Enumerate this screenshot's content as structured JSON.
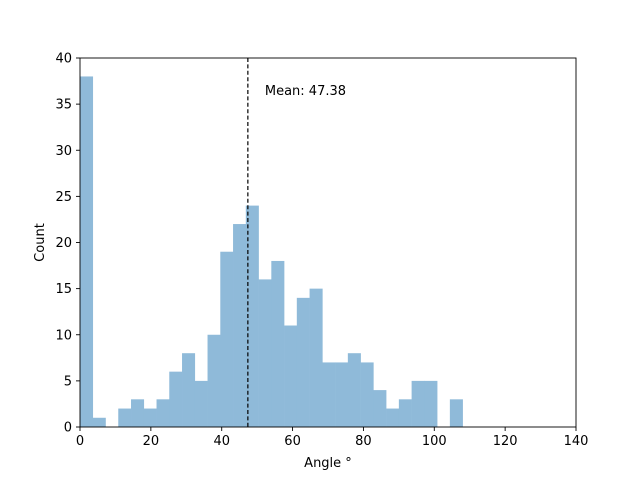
{
  "chart_data": {
    "type": "bar",
    "title": "",
    "xlabel": "Angle °",
    "ylabel": "Count",
    "xlim": [
      0,
      140
    ],
    "ylim": [
      0,
      40
    ],
    "xticks": [
      0,
      20,
      40,
      60,
      80,
      100,
      120,
      140
    ],
    "yticks": [
      0,
      5,
      10,
      15,
      20,
      25,
      30,
      35,
      40
    ],
    "grid": false,
    "legend": "none",
    "color": "#8fbad9",
    "bin_width": 3.6,
    "bins": [
      {
        "x0": 0.0,
        "count": 38
      },
      {
        "x0": 3.6,
        "count": 1
      },
      {
        "x0": 7.2,
        "count": 0
      },
      {
        "x0": 10.8,
        "count": 2
      },
      {
        "x0": 14.4,
        "count": 3
      },
      {
        "x0": 18.0,
        "count": 2
      },
      {
        "x0": 21.6,
        "count": 3
      },
      {
        "x0": 25.2,
        "count": 6
      },
      {
        "x0": 28.8,
        "count": 8
      },
      {
        "x0": 32.4,
        "count": 5
      },
      {
        "x0": 36.0,
        "count": 10
      },
      {
        "x0": 39.6,
        "count": 19
      },
      {
        "x0": 43.2,
        "count": 22
      },
      {
        "x0": 46.8,
        "count": 24
      },
      {
        "x0": 50.4,
        "count": 16
      },
      {
        "x0": 54.0,
        "count": 18
      },
      {
        "x0": 57.6,
        "count": 11
      },
      {
        "x0": 61.2,
        "count": 14
      },
      {
        "x0": 64.8,
        "count": 15
      },
      {
        "x0": 68.4,
        "count": 7
      },
      {
        "x0": 72.0,
        "count": 7
      },
      {
        "x0": 75.6,
        "count": 8
      },
      {
        "x0": 79.2,
        "count": 7
      },
      {
        "x0": 82.8,
        "count": 4
      },
      {
        "x0": 86.4,
        "count": 2
      },
      {
        "x0": 90.0,
        "count": 3
      },
      {
        "x0": 93.6,
        "count": 5
      },
      {
        "x0": 97.2,
        "count": 5
      },
      {
        "x0": 100.8,
        "count": 0
      },
      {
        "x0": 104.4,
        "count": 3
      }
    ],
    "mean_line": {
      "x": 47.38,
      "label": "Mean: 47.38",
      "color": "#000000",
      "style": "dashed"
    }
  }
}
